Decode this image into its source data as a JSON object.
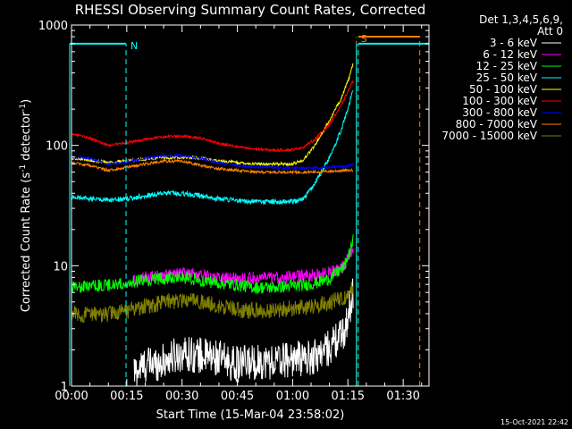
{
  "chart_data": {
    "type": "line",
    "title": "RHESSI Observing Summary Count Rates, Corrected",
    "xlabel": "Start Time (15-Mar-04 23:58:02)",
    "ylabel_main": "Corrected Count Rate (s",
    "ylabel_sup1": "-1",
    "ylabel_mid": " detector",
    "ylabel_sup2": "-1",
    "ylabel_end": ")",
    "yscale": "log",
    "ylim": [
      1,
      1000
    ],
    "xlim_minutes": [
      0,
      97
    ],
    "x_ticks": [
      {
        "minutes": 0,
        "label": "00:00"
      },
      {
        "minutes": 15,
        "label": "00:15"
      },
      {
        "minutes": 30,
        "label": "00:30"
      },
      {
        "minutes": 45,
        "label": "00:45"
      },
      {
        "minutes": 60,
        "label": "01:00"
      },
      {
        "minutes": 75,
        "label": "01:15"
      },
      {
        "minutes": 90,
        "label": "01:30"
      }
    ],
    "y_ticks": [
      {
        "value": 1,
        "label": "1"
      },
      {
        "value": 10,
        "label": "10"
      },
      {
        "value": 100,
        "label": "100"
      },
      {
        "value": 1000,
        "label": "1000"
      }
    ],
    "legend_header": [
      "Det 1,3,4,5,6,9,",
      "Att 0"
    ],
    "legend_position": "right",
    "series": [
      {
        "name": "3 - 6 keV",
        "color": "#ffffff",
        "x": [
          17,
          20,
          25,
          30,
          35,
          40,
          45,
          50,
          55,
          60,
          65,
          70,
          74,
          75.5,
          76.5
        ],
        "y": [
          1.3,
          1.5,
          1.6,
          1.9,
          1.8,
          1.7,
          1.5,
          1.6,
          1.6,
          1.7,
          1.7,
          2.1,
          2.8,
          4.5,
          6.5
        ],
        "noise": 0.35
      },
      {
        "name": "6 - 12 keV",
        "color": "#ff00ff",
        "x": [
          17,
          20,
          25,
          30,
          35,
          40,
          45,
          50,
          55,
          60,
          65,
          70,
          74,
          75.5,
          76.5
        ],
        "y": [
          7.6,
          8.0,
          8.3,
          8.6,
          8.4,
          8.0,
          7.8,
          7.9,
          7.9,
          8.1,
          8.3,
          8.8,
          10.0,
          12.5,
          14.5
        ],
        "noise": 0.12
      },
      {
        "name": "12 - 25 keV",
        "color": "#00ff00",
        "x": [
          0,
          5,
          10,
          15,
          20,
          25,
          30,
          35,
          40,
          45,
          50,
          55,
          60,
          65,
          70,
          74,
          75.5,
          76.5
        ],
        "y": [
          6.6,
          6.8,
          6.9,
          7.2,
          7.6,
          7.9,
          8.0,
          7.6,
          7.2,
          6.9,
          6.6,
          6.6,
          6.8,
          7.0,
          7.8,
          9.8,
          13.0,
          16.5
        ],
        "noise": 0.12
      },
      {
        "name": "25 - 50 keV",
        "color": "#00ffff",
        "x": [
          0,
          5,
          10,
          15,
          20,
          25,
          30,
          35,
          40,
          45,
          50,
          55,
          60,
          63,
          66,
          70,
          73,
          75,
          76.5
        ],
        "y": [
          37,
          36,
          35,
          36,
          38,
          40,
          40,
          38,
          36,
          35,
          34,
          34,
          34,
          36,
          48,
          80,
          130,
          200,
          300
        ],
        "noise": 0.05
      },
      {
        "name": "50 - 100 keV",
        "color": "#ffff00",
        "x": [
          0,
          5,
          10,
          15,
          20,
          25,
          30,
          35,
          40,
          45,
          50,
          55,
          60,
          63,
          66,
          70,
          73,
          75,
          76.5
        ],
        "y": [
          78,
          76,
          72,
          74,
          77,
          79,
          80,
          78,
          74,
          72,
          70,
          70,
          70,
          76,
          100,
          160,
          240,
          340,
          480
        ],
        "noise": 0.03
      },
      {
        "name": "100 - 300 keV",
        "color": "#ff0000",
        "x": [
          0,
          5,
          10,
          15,
          20,
          25,
          30,
          35,
          40,
          45,
          50,
          55,
          60,
          63,
          66,
          70,
          73,
          75,
          76.5
        ],
        "y": [
          125,
          115,
          100,
          105,
          112,
          118,
          120,
          115,
          104,
          97,
          93,
          91,
          92,
          97,
          112,
          150,
          210,
          280,
          350
        ],
        "noise": 0.025
      },
      {
        "name": "300 - 800 keV",
        "color": "#0000ff",
        "x": [
          0,
          5,
          10,
          15,
          20,
          25,
          30,
          35,
          40,
          45,
          50,
          55,
          60,
          65,
          70,
          75,
          76.5
        ],
        "y": [
          80,
          78,
          70,
          73,
          78,
          82,
          82,
          78,
          72,
          68,
          66,
          66,
          65,
          65,
          66,
          67,
          70
        ],
        "noise": 0.025
      },
      {
        "name": "800 - 7000 keV",
        "color": "#ff8000",
        "x": [
          0,
          5,
          10,
          15,
          20,
          25,
          30,
          35,
          40,
          45,
          50,
          55,
          60,
          65,
          70,
          75,
          76.5
        ],
        "y": [
          72,
          68,
          62,
          66,
          70,
          74,
          74,
          68,
          64,
          62,
          60,
          60,
          60,
          60,
          61,
          62,
          62
        ],
        "noise": 0.025
      },
      {
        "name": "7000 - 15000 keV",
        "color": "#808000",
        "x": [
          0,
          5,
          10,
          15,
          20,
          25,
          30,
          35,
          40,
          45,
          50,
          55,
          60,
          65,
          70,
          74,
          76.5
        ],
        "y": [
          4.0,
          3.9,
          4.0,
          4.2,
          4.6,
          5.0,
          5.2,
          5.0,
          4.6,
          4.3,
          4.2,
          4.3,
          4.4,
          4.6,
          4.9,
          5.5,
          6.5
        ],
        "noise": 0.16
      }
    ],
    "flags": [
      {
        "minutes": -0.5,
        "y_top": 700,
        "label": "",
        "color": "#00ffff"
      },
      {
        "minutes": 14.8,
        "y_top": 700,
        "label": "N",
        "color": "#00ffff"
      },
      {
        "minutes": 77.3,
        "y_top": 800,
        "label": "S",
        "color": "#ff8000"
      },
      {
        "minutes": 77.3,
        "y_top": 700,
        "label": "",
        "color": "#00ffff"
      },
      {
        "minutes": 77.8,
        "y_top": 700,
        "label": "",
        "color": "#00ffff"
      },
      {
        "minutes": 94.5,
        "y_top": 800,
        "label": "",
        "color": "#ff8000"
      }
    ],
    "timestamp": "15-Oct-2021 22:42"
  }
}
